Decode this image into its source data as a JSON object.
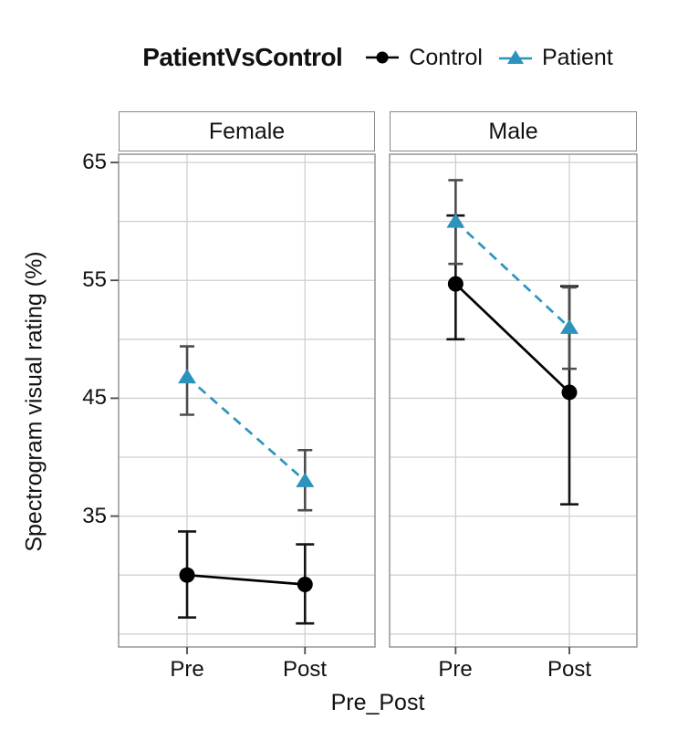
{
  "figure": {
    "legend": {
      "title": "PatientVsControl",
      "entries": [
        {
          "label": "Control",
          "color": "#000000",
          "marker": "circle",
          "linetype": "solid"
        },
        {
          "label": "Patient",
          "color": "#2C94BC",
          "marker": "triangle",
          "linetype": "dashed"
        }
      ]
    }
  },
  "chart_data": {
    "type": "line",
    "title": "PatientVsControl",
    "xlabel": "Pre_Post",
    "ylabel": "Spectrogram visual rating (%)",
    "x_categories": [
      "Pre",
      "Post"
    ],
    "y_ticks": [
      65,
      55,
      45,
      35
    ],
    "ylim": [
      23.9,
      65.7
    ],
    "gridline_step": 5,
    "grid": true,
    "legend_position": "top",
    "facets": [
      {
        "label": "Female",
        "series": [
          {
            "name": "Control",
            "values": [
              30.0,
              29.2
            ],
            "ci_low": [
              26.4,
              25.9
            ],
            "ci_high": [
              33.7,
              32.6
            ]
          },
          {
            "name": "Patient",
            "values": [
              46.8,
              38.0
            ],
            "ci_low": [
              43.6,
              35.5
            ],
            "ci_high": [
              49.4,
              40.6
            ]
          }
        ]
      },
      {
        "label": "Male",
        "series": [
          {
            "name": "Control",
            "values": [
              54.7,
              45.5
            ],
            "ci_low": [
              50.0,
              36.0
            ],
            "ci_high": [
              60.5,
              54.5
            ]
          },
          {
            "name": "Patient",
            "values": [
              60.0,
              51.0
            ],
            "ci_low": [
              56.4,
              47.5
            ],
            "ci_high": [
              63.5,
              54.4
            ]
          }
        ]
      }
    ],
    "colors": {
      "control": "#000000",
      "patient": "#2C94BC",
      "error_bar_control": "#141414",
      "error_bar_patient": "#4D4D4D",
      "gridline": "#D0D0D0",
      "panel_border": "#969696",
      "tick": "#4A4A4A"
    }
  }
}
